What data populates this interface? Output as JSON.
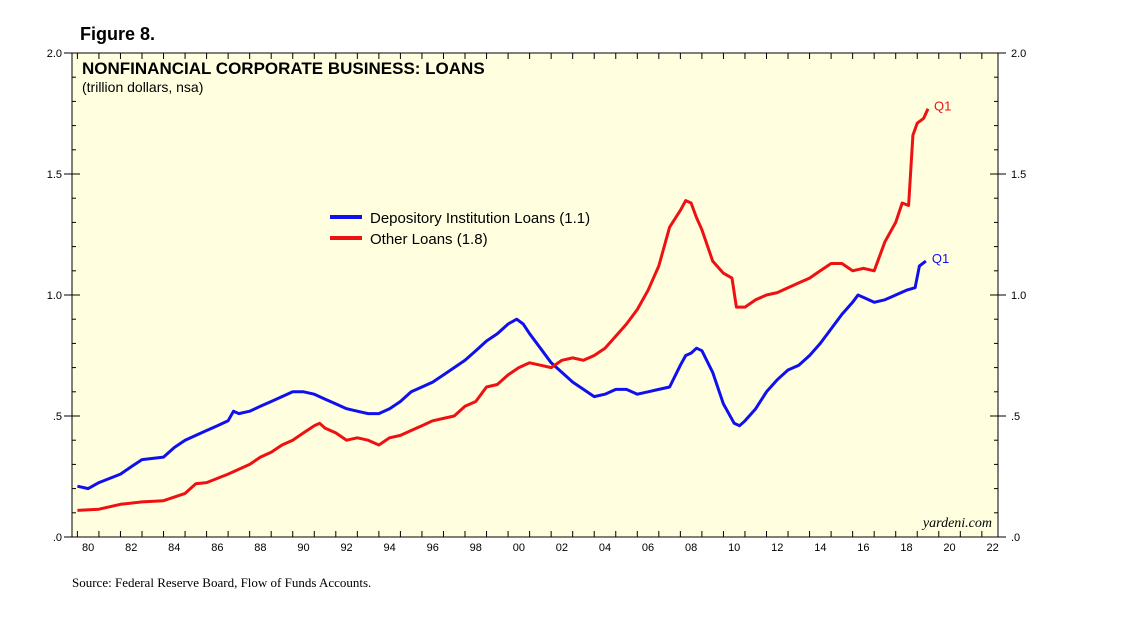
{
  "figure_label": "Figure 8.",
  "source": "Source: Federal Reserve Board, Flow of Funds Accounts.",
  "chart_data": {
    "type": "line",
    "title": "NONFINANCIAL CORPORATE BUSINESS: LOANS",
    "subtitle": "(trillion dollars, nsa)",
    "brand": "yardeni.com",
    "xlim": [
      1979.75,
      2022.75
    ],
    "ylim": [
      0,
      2.0
    ],
    "y_ticks": [
      {
        "v": 0,
        "label": ".0"
      },
      {
        "v": 0.5,
        "label": ".5"
      },
      {
        "v": 1.0,
        "label": "1.0"
      },
      {
        "v": 1.5,
        "label": "1.5"
      },
      {
        "v": 2.0,
        "label": "2.0"
      }
    ],
    "x_ticks": [
      "80",
      "82",
      "84",
      "86",
      "88",
      "90",
      "92",
      "94",
      "96",
      "98",
      "00",
      "02",
      "04",
      "06",
      "08",
      "10",
      "12",
      "14",
      "16",
      "18",
      "20",
      "22"
    ],
    "legend_position": "upper-center",
    "series": [
      {
        "name": "Depository Institution Loans (1.1)",
        "color": "#1010ee",
        "end_label": "Q1",
        "points": [
          [
            1980,
            0.21
          ],
          [
            1980.5,
            0.2
          ],
          [
            1981,
            0.225
          ],
          [
            1982,
            0.26
          ],
          [
            1982.5,
            0.29
          ],
          [
            1983,
            0.32
          ],
          [
            1984,
            0.33
          ],
          [
            1984.5,
            0.37
          ],
          [
            1985,
            0.4
          ],
          [
            1985.5,
            0.42
          ],
          [
            1986,
            0.44
          ],
          [
            1986.5,
            0.46
          ],
          [
            1987,
            0.48
          ],
          [
            1987.25,
            0.52
          ],
          [
            1987.5,
            0.51
          ],
          [
            1988,
            0.52
          ],
          [
            1988.5,
            0.54
          ],
          [
            1989,
            0.56
          ],
          [
            1989.5,
            0.58
          ],
          [
            1990,
            0.6
          ],
          [
            1990.5,
            0.6
          ],
          [
            1991,
            0.59
          ],
          [
            1991.5,
            0.57
          ],
          [
            1992,
            0.55
          ],
          [
            1992.5,
            0.53
          ],
          [
            1993,
            0.52
          ],
          [
            1993.5,
            0.51
          ],
          [
            1994,
            0.51
          ],
          [
            1994.5,
            0.53
          ],
          [
            1995,
            0.56
          ],
          [
            1995.5,
            0.6
          ],
          [
            1996,
            0.62
          ],
          [
            1996.5,
            0.64
          ],
          [
            1997,
            0.67
          ],
          [
            1997.5,
            0.7
          ],
          [
            1998,
            0.73
          ],
          [
            1998.5,
            0.77
          ],
          [
            1999,
            0.81
          ],
          [
            1999.5,
            0.84
          ],
          [
            2000,
            0.88
          ],
          [
            2000.4,
            0.9
          ],
          [
            2000.7,
            0.88
          ],
          [
            2001,
            0.84
          ],
          [
            2001.5,
            0.78
          ],
          [
            2002,
            0.72
          ],
          [
            2002.5,
            0.68
          ],
          [
            2003,
            0.64
          ],
          [
            2003.5,
            0.61
          ],
          [
            2004,
            0.58
          ],
          [
            2004.5,
            0.59
          ],
          [
            2005,
            0.61
          ],
          [
            2005.5,
            0.61
          ],
          [
            2006,
            0.59
          ],
          [
            2006.5,
            0.6
          ],
          [
            2007,
            0.61
          ],
          [
            2007.5,
            0.62
          ],
          [
            2008,
            0.71
          ],
          [
            2008.25,
            0.75
          ],
          [
            2008.5,
            0.76
          ],
          [
            2008.75,
            0.78
          ],
          [
            2009,
            0.77
          ],
          [
            2009.5,
            0.68
          ],
          [
            2010,
            0.55
          ],
          [
            2010.5,
            0.47
          ],
          [
            2010.75,
            0.46
          ],
          [
            2011,
            0.48
          ],
          [
            2011.5,
            0.53
          ],
          [
            2012,
            0.6
          ],
          [
            2012.5,
            0.65
          ],
          [
            2013,
            0.69
          ],
          [
            2013.5,
            0.71
          ],
          [
            2014,
            0.75
          ],
          [
            2014.5,
            0.8
          ],
          [
            2015,
            0.86
          ],
          [
            2015.5,
            0.92
          ],
          [
            2016,
            0.97
          ],
          [
            2016.25,
            1.0
          ],
          [
            2016.5,
            0.99
          ],
          [
            2017,
            0.97
          ],
          [
            2017.5,
            0.98
          ],
          [
            2018,
            1.0
          ],
          [
            2018.5,
            1.02
          ],
          [
            2018.9,
            1.03
          ],
          [
            2019.1,
            1.12
          ],
          [
            2019.4,
            1.14
          ]
        ]
      },
      {
        "name": "Other Loans (1.8)",
        "color": "#ee1111",
        "end_label": "Q1",
        "points": [
          [
            1980,
            0.11
          ],
          [
            1981,
            0.115
          ],
          [
            1982,
            0.135
          ],
          [
            1983,
            0.145
          ],
          [
            1984,
            0.15
          ],
          [
            1985,
            0.18
          ],
          [
            1985.5,
            0.22
          ],
          [
            1986,
            0.225
          ],
          [
            1987,
            0.26
          ],
          [
            1988,
            0.3
          ],
          [
            1988.5,
            0.33
          ],
          [
            1989,
            0.35
          ],
          [
            1989.5,
            0.38
          ],
          [
            1990,
            0.4
          ],
          [
            1990.5,
            0.43
          ],
          [
            1991,
            0.46
          ],
          [
            1991.25,
            0.47
          ],
          [
            1991.5,
            0.45
          ],
          [
            1992,
            0.43
          ],
          [
            1992.5,
            0.4
          ],
          [
            1993,
            0.41
          ],
          [
            1993.5,
            0.4
          ],
          [
            1994,
            0.38
          ],
          [
            1994.5,
            0.41
          ],
          [
            1995,
            0.42
          ],
          [
            1995.5,
            0.44
          ],
          [
            1996,
            0.46
          ],
          [
            1996.5,
            0.48
          ],
          [
            1997,
            0.49
          ],
          [
            1997.5,
            0.5
          ],
          [
            1998,
            0.54
          ],
          [
            1998.5,
            0.56
          ],
          [
            1999,
            0.62
          ],
          [
            1999.5,
            0.63
          ],
          [
            2000,
            0.67
          ],
          [
            2000.5,
            0.7
          ],
          [
            2001,
            0.72
          ],
          [
            2001.5,
            0.71
          ],
          [
            2002,
            0.7
          ],
          [
            2002.5,
            0.73
          ],
          [
            2003,
            0.74
          ],
          [
            2003.5,
            0.73
          ],
          [
            2004,
            0.75
          ],
          [
            2004.5,
            0.78
          ],
          [
            2005,
            0.83
          ],
          [
            2005.5,
            0.88
          ],
          [
            2006,
            0.94
          ],
          [
            2006.5,
            1.02
          ],
          [
            2007,
            1.12
          ],
          [
            2007.5,
            1.28
          ],
          [
            2008,
            1.35
          ],
          [
            2008.25,
            1.39
          ],
          [
            2008.5,
            1.38
          ],
          [
            2008.75,
            1.32
          ],
          [
            2009,
            1.27
          ],
          [
            2009.5,
            1.14
          ],
          [
            2010,
            1.09
          ],
          [
            2010.4,
            1.07
          ],
          [
            2010.6,
            0.95
          ],
          [
            2011,
            0.95
          ],
          [
            2011.5,
            0.98
          ],
          [
            2012,
            1.0
          ],
          [
            2012.5,
            1.01
          ],
          [
            2013,
            1.03
          ],
          [
            2013.5,
            1.05
          ],
          [
            2014,
            1.07
          ],
          [
            2014.5,
            1.1
          ],
          [
            2015,
            1.13
          ],
          [
            2015.5,
            1.13
          ],
          [
            2016,
            1.1
          ],
          [
            2016.5,
            1.11
          ],
          [
            2017,
            1.1
          ],
          [
            2017.5,
            1.22
          ],
          [
            2018,
            1.3
          ],
          [
            2018.3,
            1.38
          ],
          [
            2018.6,
            1.37
          ],
          [
            2018.8,
            1.66
          ],
          [
            2019,
            1.71
          ],
          [
            2019.3,
            1.73
          ],
          [
            2019.5,
            1.77
          ]
        ]
      }
    ]
  }
}
